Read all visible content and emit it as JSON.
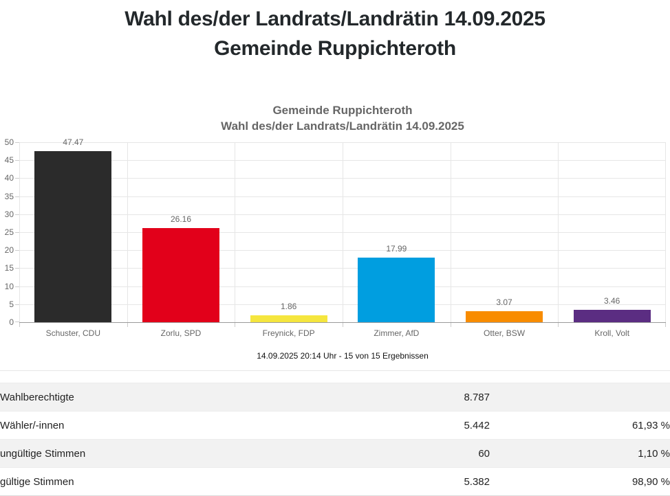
{
  "page": {
    "title_line1": "Wahl des/der Landrats/Landrätin 14.09.2025",
    "title_line2": "Gemeinde Ruppichteroth"
  },
  "chart": {
    "title_line1": "Gemeinde Ruppichteroth",
    "title_line2": "Wahl des/der Landrats/Landrätin 14.09.2025",
    "caption": "14.09.2025 20:14 Uhr - 15 von 15 Ergebnissen"
  },
  "chart_data": {
    "type": "bar",
    "title": "Gemeinde Ruppichteroth — Wahl des/der Landrats/Landrätin 14.09.2025",
    "categories": [
      "Schuster, CDU",
      "Zorlu, SPD",
      "Freynick, FDP",
      "Zimmer, AfD",
      "Otter, BSW",
      "Kroll, Volt"
    ],
    "values": [
      47.47,
      26.16,
      1.86,
      17.99,
      3.07,
      3.46
    ],
    "value_labels": [
      "47.47",
      "26.16",
      "1.86",
      "17.99",
      "3.07",
      "3.46"
    ],
    "bar_colors": [
      "#2b2b2b",
      "#e2001a",
      "#f5e63e",
      "#009ee0",
      "#f88c00",
      "#5b2d82"
    ],
    "xlabel": "",
    "ylabel": "",
    "ylim": [
      0,
      50
    ],
    "yticks": [
      0,
      5,
      10,
      15,
      20,
      25,
      30,
      35,
      40,
      45,
      50
    ],
    "grid": true,
    "legend": false,
    "label_color": "#666666",
    "grid_color": "#e6e6e6",
    "axis_color": "#999999"
  },
  "table": {
    "rows": [
      {
        "label": "Wahlberechtigte",
        "value": "8.787",
        "percent": ""
      },
      {
        "label": "Wähler/-innen",
        "value": "5.442",
        "percent": "61,93 %"
      },
      {
        "label": "ungültige Stimmen",
        "value": "60",
        "percent": "1,10 %"
      },
      {
        "label": "gültige Stimmen",
        "value": "5.382",
        "percent": "98,90 %"
      }
    ]
  }
}
